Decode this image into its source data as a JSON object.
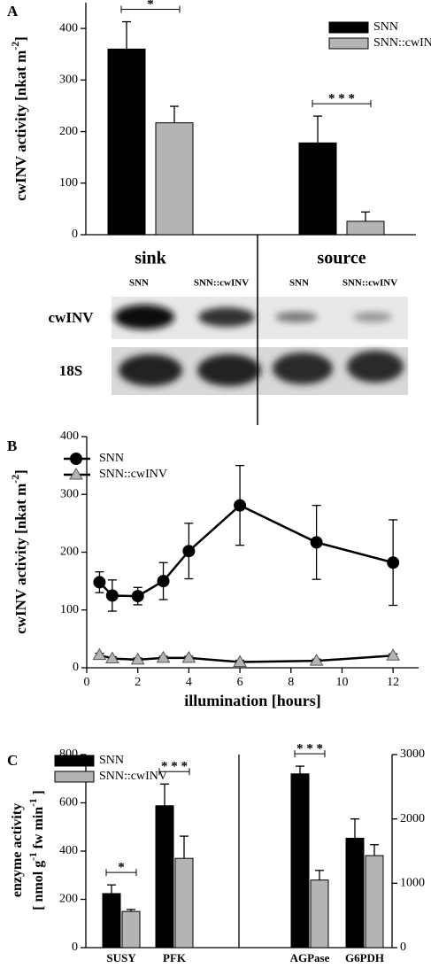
{
  "chart_data": [
    {
      "type": "bar",
      "panel_label": "A",
      "ylabel": [
        "cwINV activity [nkat m",
        "-2",
        "]"
      ],
      "categories": [
        "sink",
        "source"
      ],
      "series": [
        {
          "name": "SNN",
          "color": "#000000",
          "values": [
            360,
            178
          ],
          "errors": [
            53,
            52
          ]
        },
        {
          "name": "SNN::cwINV",
          "color": "#b4b4b4",
          "values": [
            217,
            26
          ],
          "errors": [
            32,
            18
          ]
        }
      ],
      "annotations": [
        "*",
        "* * *"
      ],
      "ylim": [
        0,
        450
      ],
      "yticks": [
        0,
        100,
        200,
        300,
        400
      ],
      "legend": "upper right"
    },
    {
      "type": "line",
      "panel_label": "B",
      "ylabel": [
        "cwINV activity [nkat m",
        "-2",
        "]"
      ],
      "xlabel": "illumination [hours]",
      "x": [
        0.5,
        1,
        2,
        3,
        4,
        6,
        9,
        12
      ],
      "series": [
        {
          "name": "SNN",
          "color": "#000000",
          "marker": "circle",
          "values": [
            148,
            125,
            124,
            150,
            202,
            281,
            217,
            182
          ],
          "errors": [
            18,
            27,
            15,
            32,
            48,
            69,
            64,
            74
          ]
        },
        {
          "name": "SNN::cwINV",
          "color": "#b4b4b4",
          "marker": "triangle",
          "values": [
            22,
            16,
            14,
            17,
            17,
            10,
            12,
            21
          ],
          "errors": [
            3,
            3,
            3,
            3,
            3,
            3,
            3,
            3
          ]
        }
      ],
      "xlim": [
        0,
        13
      ],
      "xticks": [
        0,
        2,
        4,
        6,
        8,
        10,
        12
      ],
      "ylim": [
        0,
        400
      ],
      "yticks": [
        0,
        100,
        200,
        300,
        400
      ],
      "legend": "upper left"
    },
    {
      "type": "bar",
      "panel_label": "C",
      "ylabel": [
        [
          "enzyme activity"
        ],
        [
          "[ nmol g",
          "-1",
          " fw min",
          "-1",
          " ]"
        ]
      ],
      "categories": [
        "SUSY",
        "PFK",
        "AGPase",
        "G6PDH"
      ],
      "category_axis": [
        "y",
        "y",
        "y2",
        "y2"
      ],
      "series": [
        {
          "name": "SNN",
          "color": "#000000",
          "values": [
            224,
            588,
            2700,
            1700
          ],
          "errors": [
            36,
            90,
            120,
            300
          ]
        },
        {
          "name": "SNN::cwINV",
          "color": "#b4b4b4",
          "values": [
            150,
            370,
            1050,
            1430
          ],
          "errors": [
            8,
            92,
            150,
            170
          ]
        }
      ],
      "annotations": [
        "*",
        "* * *",
        "* * *",
        null
      ],
      "ylim": [
        0,
        800
      ],
      "yticks": [
        0,
        200,
        400,
        600,
        800
      ],
      "y2lim": [
        0,
        3000
      ],
      "y2ticks": [
        0,
        1000,
        2000,
        3000
      ],
      "legend": "upper left"
    }
  ],
  "blot": {
    "lanes": [
      "SNN",
      "SNN::cwINV",
      "SNN",
      "SNN::cwINV"
    ],
    "rows": [
      "cwINV",
      "18S"
    ]
  }
}
